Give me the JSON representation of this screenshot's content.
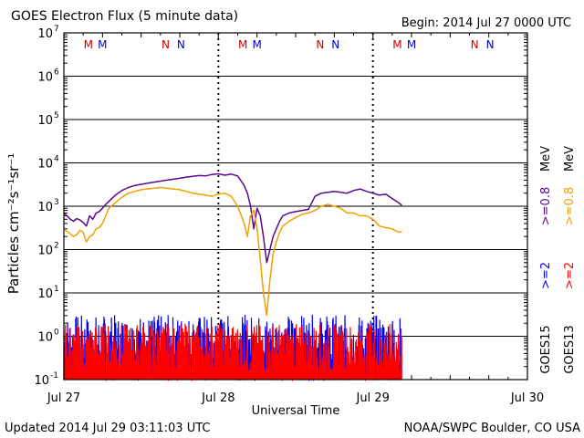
{
  "title": "GOES Electron Flux (5 minute data)",
  "begin": "Begin: 2014 Jul 27 0000 UTC",
  "updated": "Updated 2014 Jul 29 03:11:03 UTC",
  "credit": "NOAA/SWPC Boulder, CO USA",
  "colors": {
    "goes13_08": "#f0a000",
    "goes15_08": "#5a0a8c",
    "goes13_2": "#ff0000",
    "goes15_2": "#0000ff",
    "marker_M": "#cc0000",
    "marker_N": "#cc0000",
    "marker_N2": "#0000cc"
  },
  "chart_data": {
    "type": "line",
    "xlabel": "Universal Time",
    "ylabel": "Particles cm⁻²s⁻¹sr⁻¹",
    "xlim": [
      0,
      72
    ],
    "ylim_log10": [
      -1,
      7
    ],
    "yscale": "log",
    "x_ticks": [
      {
        "x": 0,
        "label": "Jul 27"
      },
      {
        "x": 24,
        "label": "Jul 28"
      },
      {
        "x": 48,
        "label": "Jul 29"
      },
      {
        "x": 72,
        "label": "Jul 30"
      }
    ],
    "y_ticks_log10": [
      -1,
      0,
      1,
      2,
      3,
      4,
      5,
      6,
      7
    ],
    "y_tick_labels": [
      "10",
      "10",
      "10",
      "10",
      "10",
      "10",
      "10",
      "10",
      "10"
    ],
    "y_tick_exponents": [
      "-1",
      "0",
      "1",
      "2",
      "3",
      "4",
      "5",
      "6",
      "7"
    ],
    "threshold_log10": 3,
    "grid": "horizontal",
    "right_labels": {
      "goes15": "GOES15",
      "goes13": "GOES13",
      "goes15_2": ">=2",
      "goes13_2": ">=2",
      "goes15_08": ">=0.8",
      "goes13_08": ">=0.8",
      "mev1": "MeV",
      "mev2": "MeV"
    },
    "markers": [
      {
        "x": 3.8,
        "label": "M",
        "sat": "13"
      },
      {
        "x": 6.0,
        "label": "M",
        "sat": "15"
      },
      {
        "x": 15.8,
        "label": "N",
        "sat": "13"
      },
      {
        "x": 18.2,
        "label": "N",
        "sat": "15"
      },
      {
        "x": 27.8,
        "label": "M",
        "sat": "13"
      },
      {
        "x": 30.0,
        "label": "M",
        "sat": "15"
      },
      {
        "x": 39.8,
        "label": "N",
        "sat": "13"
      },
      {
        "x": 42.2,
        "label": "N",
        "sat": "15"
      },
      {
        "x": 51.8,
        "label": "M",
        "sat": "13"
      },
      {
        "x": 54.0,
        "label": "M",
        "sat": "15"
      },
      {
        "x": 63.8,
        "label": "N",
        "sat": "13"
      },
      {
        "x": 66.2,
        "label": "N",
        "sat": "15"
      }
    ],
    "series": [
      {
        "key": "goes15_08",
        "x": [
          0,
          0.5,
          1,
          1.5,
          2,
          2.5,
          3,
          3.5,
          4,
          4.5,
          5,
          5.5,
          6,
          6.5,
          7,
          8,
          9,
          10,
          11,
          12,
          13,
          14,
          15,
          16,
          17,
          18,
          19,
          20,
          21,
          22,
          23,
          24,
          25,
          26,
          27,
          28,
          28.5,
          29,
          29.5,
          30,
          30.5,
          31,
          31.5,
          32,
          32.5,
          33,
          33.5,
          34,
          35,
          36,
          37,
          38,
          39,
          40,
          41,
          42,
          43,
          44,
          45,
          46,
          47,
          48,
          49,
          50,
          51,
          52,
          52.5
        ],
        "y": [
          700,
          600,
          500,
          450,
          520,
          480,
          420,
          350,
          600,
          500,
          700,
          750,
          900,
          1100,
          1300,
          1800,
          2300,
          2700,
          3000,
          3200,
          3400,
          3600,
          3800,
          4000,
          4200,
          4400,
          4700,
          4900,
          5100,
          5000,
          5400,
          5600,
          5200,
          5500,
          5000,
          3000,
          2000,
          1000,
          300,
          900,
          600,
          200,
          50,
          100,
          200,
          300,
          450,
          600,
          700,
          750,
          800,
          850,
          1700,
          2000,
          2100,
          2200,
          2100,
          2000,
          2300,
          2500,
          2200,
          2000,
          1800,
          1900,
          1500,
          1200,
          1050
        ]
      },
      {
        "key": "goes13_08",
        "x": [
          0,
          0.5,
          1,
          1.5,
          2,
          2.5,
          3,
          3.5,
          4,
          4.5,
          5,
          5.5,
          6,
          6.5,
          7,
          8,
          9,
          10,
          11,
          12,
          13,
          14,
          15,
          16,
          17,
          18,
          19,
          20,
          21,
          22,
          23,
          24,
          25,
          26,
          27,
          28,
          28.5,
          29,
          29.5,
          30,
          30.5,
          31,
          31.5,
          32,
          32.5,
          33,
          33.5,
          34,
          35,
          36,
          37,
          38,
          39,
          40,
          41,
          42,
          43,
          44,
          45,
          46,
          47,
          48,
          49,
          50,
          51,
          52,
          52.5
        ],
        "y": [
          300,
          260,
          230,
          200,
          220,
          280,
          250,
          150,
          200,
          220,
          300,
          320,
          400,
          600,
          900,
          1200,
          1600,
          2000,
          2200,
          2400,
          2500,
          2600,
          2700,
          2600,
          2500,
          2400,
          2200,
          2000,
          1900,
          1800,
          1700,
          1900,
          2000,
          1700,
          1000,
          400,
          200,
          600,
          800,
          300,
          60,
          10,
          3,
          20,
          80,
          150,
          250,
          350,
          450,
          550,
          650,
          700,
          800,
          1000,
          1100,
          1000,
          900,
          700,
          700,
          600,
          600,
          500,
          350,
          320,
          300,
          250,
          260
        ]
      }
    ],
    "noise_bars": {
      "x_range": [
        0,
        52.5
      ],
      "goes15_2_range_log10": [
        -1,
        0.5
      ],
      "goes13_2_range_log10": [
        -1,
        0.3
      ]
    }
  }
}
